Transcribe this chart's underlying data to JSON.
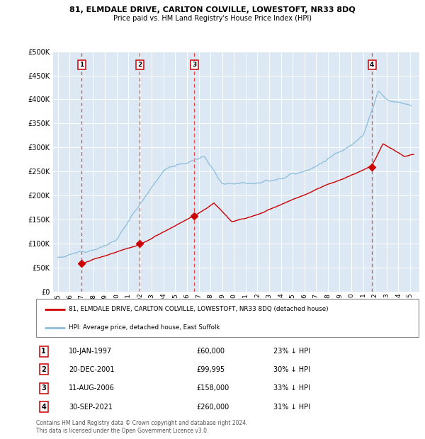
{
  "title1": "81, ELMDALE DRIVE, CARLTON COLVILLE, LOWESTOFT, NR33 8DQ",
  "title2": "Price paid vs. HM Land Registry's House Price Index (HPI)",
  "legend_line1": "81, ELMDALE DRIVE, CARLTON COLVILLE, LOWESTOFT, NR33 8DQ (detached house)",
  "legend_line2": "HPI: Average price, detached house, East Suffolk",
  "footnote1": "Contains HM Land Registry data © Crown copyright and database right 2024.",
  "footnote2": "This data is licensed under the Open Government Licence v3.0.",
  "sales": [
    {
      "label": "1",
      "price": 60000,
      "x_year": 1997.03
    },
    {
      "label": "2",
      "price": 99995,
      "x_year": 2001.97
    },
    {
      "label": "3",
      "price": 158000,
      "x_year": 2006.62
    },
    {
      "label": "4",
      "price": 260000,
      "x_year": 2021.75
    }
  ],
  "sale_info": [
    {
      "num": "1",
      "date_str": "10-JAN-1997",
      "price_str": "£60,000",
      "hpi_str": "23% ↓ HPI"
    },
    {
      "num": "2",
      "date_str": "20-DEC-2001",
      "price_str": "£99,995",
      "hpi_str": "30% ↓ HPI"
    },
    {
      "num": "3",
      "date_str": "11-AUG-2006",
      "price_str": "£158,000",
      "hpi_str": "33% ↓ HPI"
    },
    {
      "num": "4",
      "date_str": "30-SEP-2021",
      "price_str": "£260,000",
      "hpi_str": "31% ↓ HPI"
    }
  ],
  "bg_color": "#dce9f5",
  "grid_color": "#ffffff",
  "hpi_color": "#8bbcda",
  "price_color": "#cc0000",
  "dashed_color": "#ee4444",
  "ylim": [
    0,
    500000
  ],
  "yticks": [
    0,
    50000,
    100000,
    150000,
    200000,
    250000,
    300000,
    350000,
    400000,
    450000,
    500000
  ],
  "xlim_start": 1994.6,
  "xlim_end": 2025.8,
  "xtick_years": [
    1995,
    1996,
    1997,
    1998,
    1999,
    2000,
    2001,
    2002,
    2003,
    2004,
    2005,
    2006,
    2007,
    2008,
    2009,
    2010,
    2011,
    2012,
    2013,
    2014,
    2015,
    2016,
    2017,
    2018,
    2019,
    2020,
    2021,
    2022,
    2023,
    2024,
    2025
  ]
}
